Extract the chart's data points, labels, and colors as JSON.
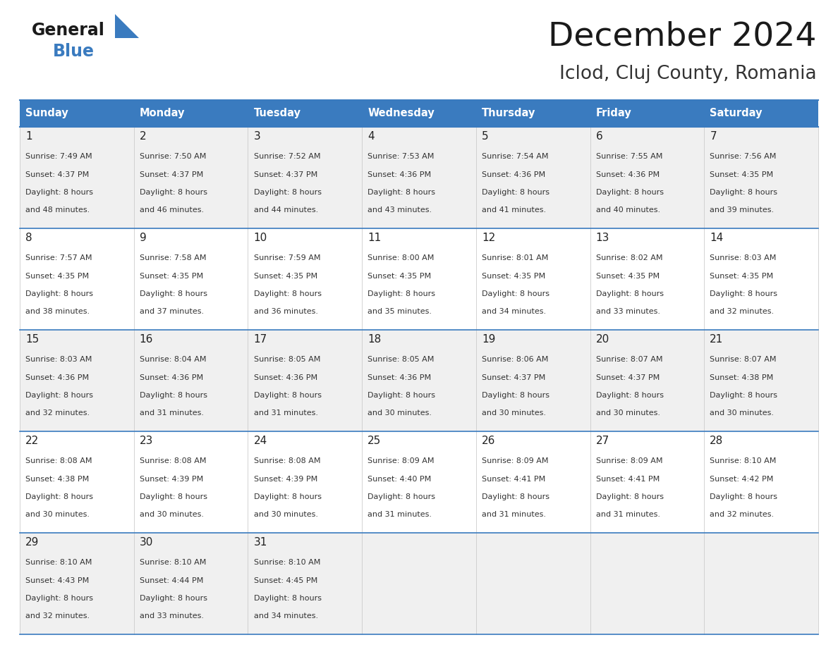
{
  "title": "December 2024",
  "subtitle": "Iclod, Cluj County, Romania",
  "header_bg_color": "#3A7BBF",
  "header_text_color": "#FFFFFF",
  "days_of_week": [
    "Sunday",
    "Monday",
    "Tuesday",
    "Wednesday",
    "Thursday",
    "Friday",
    "Saturday"
  ],
  "row_bg_odd": "#F0F0F0",
  "row_bg_even": "#FFFFFF",
  "cell_text_color": "#333333",
  "border_color": "#3A7BBF",
  "logo_general_color": "#1a1a1a",
  "logo_blue_color": "#3A7BBF",
  "title_color": "#1a1a1a",
  "subtitle_color": "#333333",
  "weeks": [
    [
      {
        "day": 1,
        "sunrise": "7:49 AM",
        "sunset": "4:37 PM",
        "daylight": "8 hours and 48 minutes."
      },
      {
        "day": 2,
        "sunrise": "7:50 AM",
        "sunset": "4:37 PM",
        "daylight": "8 hours and 46 minutes."
      },
      {
        "day": 3,
        "sunrise": "7:52 AM",
        "sunset": "4:37 PM",
        "daylight": "8 hours and 44 minutes."
      },
      {
        "day": 4,
        "sunrise": "7:53 AM",
        "sunset": "4:36 PM",
        "daylight": "8 hours and 43 minutes."
      },
      {
        "day": 5,
        "sunrise": "7:54 AM",
        "sunset": "4:36 PM",
        "daylight": "8 hours and 41 minutes."
      },
      {
        "day": 6,
        "sunrise": "7:55 AM",
        "sunset": "4:36 PM",
        "daylight": "8 hours and 40 minutes."
      },
      {
        "day": 7,
        "sunrise": "7:56 AM",
        "sunset": "4:35 PM",
        "daylight": "8 hours and 39 minutes."
      }
    ],
    [
      {
        "day": 8,
        "sunrise": "7:57 AM",
        "sunset": "4:35 PM",
        "daylight": "8 hours and 38 minutes."
      },
      {
        "day": 9,
        "sunrise": "7:58 AM",
        "sunset": "4:35 PM",
        "daylight": "8 hours and 37 minutes."
      },
      {
        "day": 10,
        "sunrise": "7:59 AM",
        "sunset": "4:35 PM",
        "daylight": "8 hours and 36 minutes."
      },
      {
        "day": 11,
        "sunrise": "8:00 AM",
        "sunset": "4:35 PM",
        "daylight": "8 hours and 35 minutes."
      },
      {
        "day": 12,
        "sunrise": "8:01 AM",
        "sunset": "4:35 PM",
        "daylight": "8 hours and 34 minutes."
      },
      {
        "day": 13,
        "sunrise": "8:02 AM",
        "sunset": "4:35 PM",
        "daylight": "8 hours and 33 minutes."
      },
      {
        "day": 14,
        "sunrise": "8:03 AM",
        "sunset": "4:35 PM",
        "daylight": "8 hours and 32 minutes."
      }
    ],
    [
      {
        "day": 15,
        "sunrise": "8:03 AM",
        "sunset": "4:36 PM",
        "daylight": "8 hours and 32 minutes."
      },
      {
        "day": 16,
        "sunrise": "8:04 AM",
        "sunset": "4:36 PM",
        "daylight": "8 hours and 31 minutes."
      },
      {
        "day": 17,
        "sunrise": "8:05 AM",
        "sunset": "4:36 PM",
        "daylight": "8 hours and 31 minutes."
      },
      {
        "day": 18,
        "sunrise": "8:05 AM",
        "sunset": "4:36 PM",
        "daylight": "8 hours and 30 minutes."
      },
      {
        "day": 19,
        "sunrise": "8:06 AM",
        "sunset": "4:37 PM",
        "daylight": "8 hours and 30 minutes."
      },
      {
        "day": 20,
        "sunrise": "8:07 AM",
        "sunset": "4:37 PM",
        "daylight": "8 hours and 30 minutes."
      },
      {
        "day": 21,
        "sunrise": "8:07 AM",
        "sunset": "4:38 PM",
        "daylight": "8 hours and 30 minutes."
      }
    ],
    [
      {
        "day": 22,
        "sunrise": "8:08 AM",
        "sunset": "4:38 PM",
        "daylight": "8 hours and 30 minutes."
      },
      {
        "day": 23,
        "sunrise": "8:08 AM",
        "sunset": "4:39 PM",
        "daylight": "8 hours and 30 minutes."
      },
      {
        "day": 24,
        "sunrise": "8:08 AM",
        "sunset": "4:39 PM",
        "daylight": "8 hours and 30 minutes."
      },
      {
        "day": 25,
        "sunrise": "8:09 AM",
        "sunset": "4:40 PM",
        "daylight": "8 hours and 31 minutes."
      },
      {
        "day": 26,
        "sunrise": "8:09 AM",
        "sunset": "4:41 PM",
        "daylight": "8 hours and 31 minutes."
      },
      {
        "day": 27,
        "sunrise": "8:09 AM",
        "sunset": "4:41 PM",
        "daylight": "8 hours and 31 minutes."
      },
      {
        "day": 28,
        "sunrise": "8:10 AM",
        "sunset": "4:42 PM",
        "daylight": "8 hours and 32 minutes."
      }
    ],
    [
      {
        "day": 29,
        "sunrise": "8:10 AM",
        "sunset": "4:43 PM",
        "daylight": "8 hours and 32 minutes."
      },
      {
        "day": 30,
        "sunrise": "8:10 AM",
        "sunset": "4:44 PM",
        "daylight": "8 hours and 33 minutes."
      },
      {
        "day": 31,
        "sunrise": "8:10 AM",
        "sunset": "4:45 PM",
        "daylight": "8 hours and 34 minutes."
      },
      null,
      null,
      null,
      null
    ]
  ],
  "num_weeks": 5,
  "fig_width": 11.88,
  "fig_height": 9.18,
  "dpi": 100
}
